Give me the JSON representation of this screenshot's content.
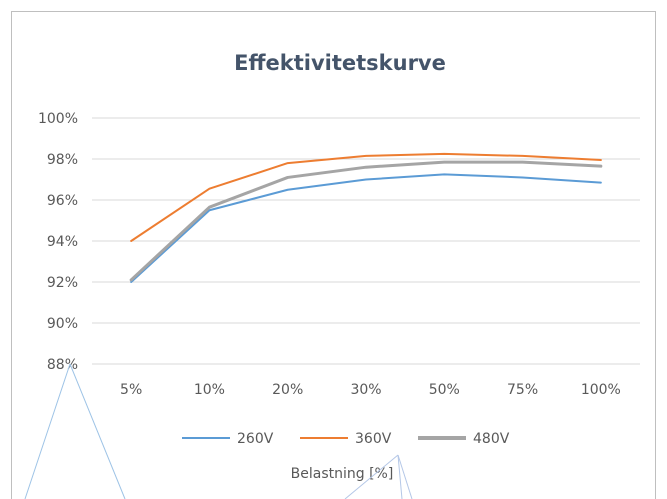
{
  "chart_data": {
    "type": "line",
    "title": "Effektivitetskurve",
    "xlabel": "Belastning [%]",
    "ylabel": "",
    "categories": [
      "5%",
      "10%",
      "20%",
      "30%",
      "50%",
      "75%",
      "100%"
    ],
    "ylim": [
      88,
      100
    ],
    "yticks": [
      88,
      90,
      92,
      94,
      96,
      98,
      100
    ],
    "ytick_labels": [
      "88%",
      "90%",
      "92%",
      "94%",
      "96%",
      "98%",
      "100%"
    ],
    "grid": true,
    "legend_position": "bottom",
    "series": [
      {
        "name": "260V",
        "color": "#5b9bd5",
        "values": [
          92.0,
          95.5,
          96.5,
          97.0,
          97.25,
          97.1,
          96.85
        ]
      },
      {
        "name": "360V",
        "color": "#ed7d31",
        "values": [
          94.0,
          96.55,
          97.8,
          98.15,
          98.25,
          98.15,
          97.95
        ]
      },
      {
        "name": "480V",
        "color": "#a5a5a5",
        "values": [
          92.1,
          95.65,
          97.1,
          97.6,
          97.85,
          97.85,
          97.65
        ]
      }
    ]
  }
}
